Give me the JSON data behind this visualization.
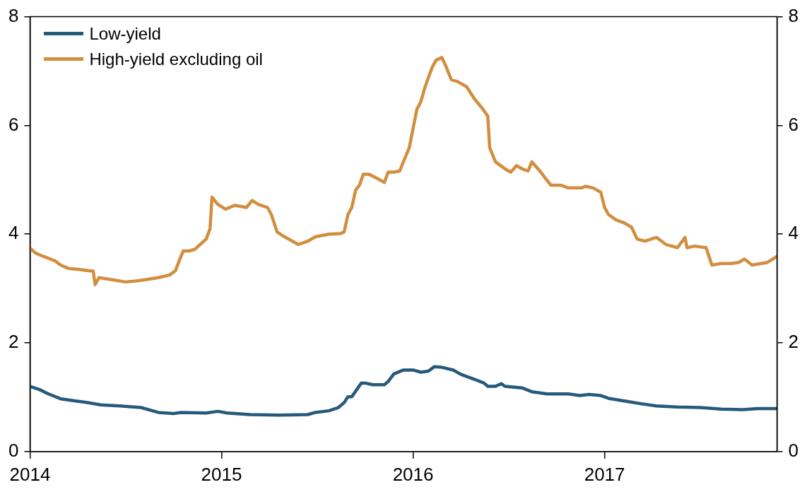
{
  "chart_data": {
    "type": "line",
    "legend": "top left",
    "xlim": [
      2014,
      2017.9
    ],
    "xticks": [
      2014,
      2015,
      2016,
      2017
    ],
    "ylim": [
      0,
      8
    ],
    "yticks": [
      0,
      2,
      4,
      6,
      8
    ],
    "y2lim": [
      0,
      8
    ],
    "y2ticks": [
      0,
      2,
      4,
      6,
      8
    ],
    "series": [
      {
        "name": "Low-yield",
        "color": "#255a7b",
        "x": [
          2014.0,
          2014.05,
          2014.09,
          2014.16,
          2014.24,
          2014.3,
          2014.37,
          2014.47,
          2014.58,
          2014.64,
          2014.67,
          2014.75,
          2014.79,
          2014.92,
          2014.98,
          2015.03,
          2015.15,
          2015.3,
          2015.45,
          2015.49,
          2015.56,
          2015.61,
          2015.64,
          2015.66,
          2015.68,
          2015.73,
          2015.75,
          2015.79,
          2015.85,
          2015.87,
          2015.9,
          2015.95,
          2016.0,
          2016.04,
          2016.08,
          2016.11,
          2016.15,
          2016.21,
          2016.25,
          2016.32,
          2016.37,
          2016.39,
          2016.43,
          2016.46,
          2016.48,
          2016.57,
          2016.62,
          2016.7,
          2016.81,
          2016.87,
          2016.92,
          2016.98,
          2017.02,
          2017.12,
          2017.19,
          2017.27,
          2017.38,
          2017.5,
          2017.61,
          2017.72,
          2017.8,
          2017.9
        ],
        "values": [
          1.2,
          1.14,
          1.07,
          0.97,
          0.93,
          0.9,
          0.86,
          0.84,
          0.81,
          0.75,
          0.72,
          0.7,
          0.72,
          0.71,
          0.74,
          0.71,
          0.68,
          0.67,
          0.68,
          0.72,
          0.75,
          0.81,
          0.9,
          1.01,
          1.01,
          1.26,
          1.26,
          1.23,
          1.23,
          1.29,
          1.43,
          1.5,
          1.5,
          1.46,
          1.48,
          1.56,
          1.55,
          1.5,
          1.42,
          1.33,
          1.26,
          1.2,
          1.2,
          1.25,
          1.2,
          1.17,
          1.1,
          1.06,
          1.06,
          1.03,
          1.05,
          1.03,
          0.98,
          0.92,
          0.88,
          0.84,
          0.82,
          0.81,
          0.78,
          0.77,
          0.79,
          0.79
        ]
      },
      {
        "name": "High-yield excluding oil",
        "color": "#d28e3f",
        "x": [
          2014.0,
          2014.03,
          2014.07,
          2014.13,
          2014.16,
          2014.2,
          2014.26,
          2014.3,
          2014.33,
          2014.34,
          2014.36,
          2014.43,
          2014.5,
          2014.56,
          2014.6,
          2014.67,
          2014.73,
          2014.76,
          2014.78,
          2014.8,
          2014.83,
          2014.86,
          2014.92,
          2014.94,
          2014.95,
          2014.98,
          2015.02,
          2015.07,
          2015.13,
          2015.16,
          2015.19,
          2015.24,
          2015.26,
          2015.29,
          2015.32,
          2015.37,
          2015.4,
          2015.45,
          2015.49,
          2015.56,
          2015.62,
          2015.64,
          2015.66,
          2015.68,
          2015.7,
          2015.72,
          2015.74,
          2015.77,
          2015.81,
          2015.85,
          2015.87,
          2015.9,
          2015.93,
          2015.96,
          2015.98,
          2016.02,
          2016.04,
          2016.06,
          2016.08,
          2016.1,
          2016.12,
          2016.15,
          2016.17,
          2016.2,
          2016.23,
          2016.28,
          2016.32,
          2016.36,
          2016.39,
          2016.4,
          2016.43,
          2016.48,
          2016.51,
          2016.54,
          2016.57,
          2016.6,
          2016.62,
          2016.66,
          2016.69,
          2016.72,
          2016.77,
          2016.81,
          2016.88,
          2016.9,
          2016.94,
          2016.98,
          2017.0,
          2017.02,
          2017.06,
          2017.1,
          2017.14,
          2017.17,
          2017.21,
          2017.27,
          2017.32,
          2017.38,
          2017.42,
          2017.43,
          2017.47,
          2017.53,
          2017.56,
          2017.61,
          2017.66,
          2017.7,
          2017.73,
          2017.77,
          2017.85,
          2017.9
        ],
        "values": [
          3.74,
          3.65,
          3.59,
          3.51,
          3.43,
          3.37,
          3.35,
          3.33,
          3.32,
          3.07,
          3.2,
          3.16,
          3.12,
          3.14,
          3.16,
          3.2,
          3.25,
          3.33,
          3.52,
          3.69,
          3.69,
          3.72,
          3.91,
          4.1,
          4.68,
          4.55,
          4.46,
          4.53,
          4.49,
          4.62,
          4.55,
          4.49,
          4.36,
          4.04,
          3.97,
          3.87,
          3.81,
          3.87,
          3.95,
          4.0,
          4.01,
          4.04,
          4.36,
          4.49,
          4.81,
          4.9,
          5.1,
          5.1,
          5.03,
          4.95,
          5.14,
          5.14,
          5.16,
          5.42,
          5.59,
          6.3,
          6.43,
          6.68,
          6.88,
          7.07,
          7.2,
          7.25,
          7.1,
          6.84,
          6.81,
          6.71,
          6.49,
          6.32,
          6.17,
          5.59,
          5.33,
          5.2,
          5.14,
          5.26,
          5.2,
          5.16,
          5.33,
          5.17,
          5.03,
          4.9,
          4.9,
          4.85,
          4.85,
          4.88,
          4.85,
          4.77,
          4.49,
          4.36,
          4.26,
          4.21,
          4.13,
          3.91,
          3.87,
          3.94,
          3.81,
          3.75,
          3.94,
          3.75,
          3.78,
          3.75,
          3.43,
          3.46,
          3.46,
          3.48,
          3.54,
          3.43,
          3.48,
          3.59
        ]
      }
    ]
  }
}
